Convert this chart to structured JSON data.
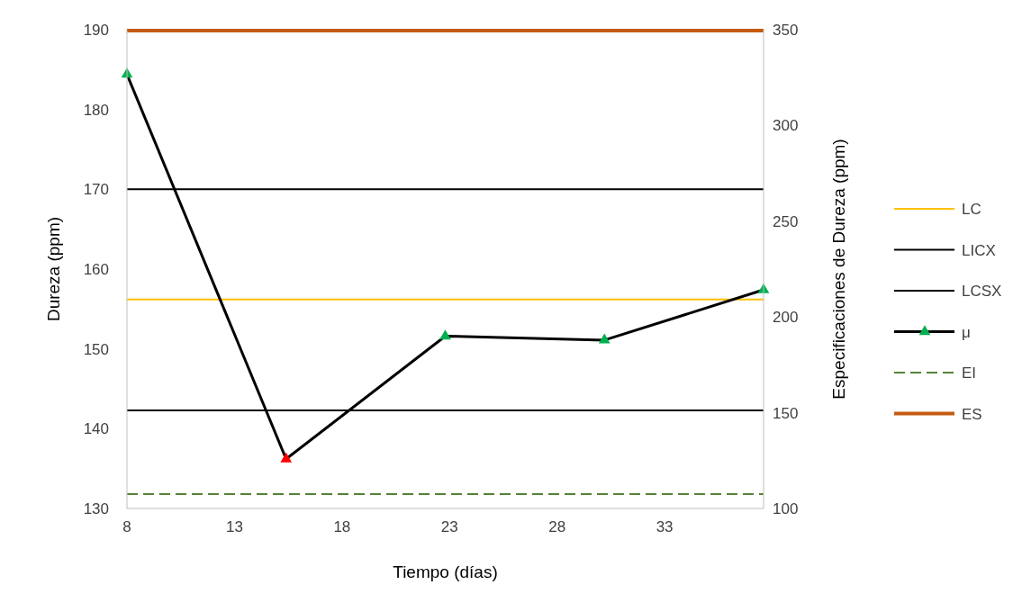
{
  "chart_data": {
    "type": "line",
    "xlabel": "Tiempo (días)",
    "ylabel": "Dureza (ppm)",
    "y2label": "Especificaciones de Dureza (ppm)",
    "xlim": [
      8,
      37.6
    ],
    "xticks": [
      8,
      13,
      18,
      23,
      28,
      33
    ],
    "ylim": [
      130,
      190
    ],
    "yticks": [
      130,
      140,
      150,
      160,
      170,
      180,
      190
    ],
    "y2lim": [
      100,
      350
    ],
    "y2ticks": [
      100,
      150,
      200,
      250,
      300,
      350
    ],
    "grid": false,
    "legend": "right",
    "series": [
      {
        "name": "LC",
        "color": "#ffc000",
        "x": [
          8,
          37.6
        ],
        "values": [
          156.2,
          156.2
        ],
        "marker": "none",
        "line_style": "solid"
      },
      {
        "name": "LICX",
        "color": "#000000",
        "x": [
          8,
          37.6
        ],
        "values": [
          142.3,
          142.3
        ],
        "marker": "none",
        "line_style": "solid"
      },
      {
        "name": "LCSX",
        "color": "#000000",
        "x": [
          8,
          37.6
        ],
        "values": [
          170,
          170
        ],
        "marker": "none",
        "line_style": "solid"
      },
      {
        "name": "μ",
        "color": "#000000",
        "x": [
          8,
          15.4,
          22.8,
          30.2,
          37.6
        ],
        "values": [
          184.4,
          136.2,
          151.6,
          151.1,
          157.4
        ],
        "colors": [
          "#00b050",
          "#ff0000",
          "#00b050",
          "#00b050",
          "#00b050"
        ],
        "marker": "triangle",
        "line_style": "solid"
      },
      {
        "name": "EI",
        "color": "#548235",
        "x": [
          8,
          37.6
        ],
        "values": [
          107.5,
          107.5
        ],
        "axis": "y2",
        "marker": "none",
        "line_style": "dashed"
      },
      {
        "name": "ES",
        "color": "#c55a11",
        "x": [
          8,
          37.6
        ],
        "values": [
          349.5,
          349.5
        ],
        "axis": "y2",
        "marker": "none",
        "line_style": "solid"
      }
    ]
  }
}
